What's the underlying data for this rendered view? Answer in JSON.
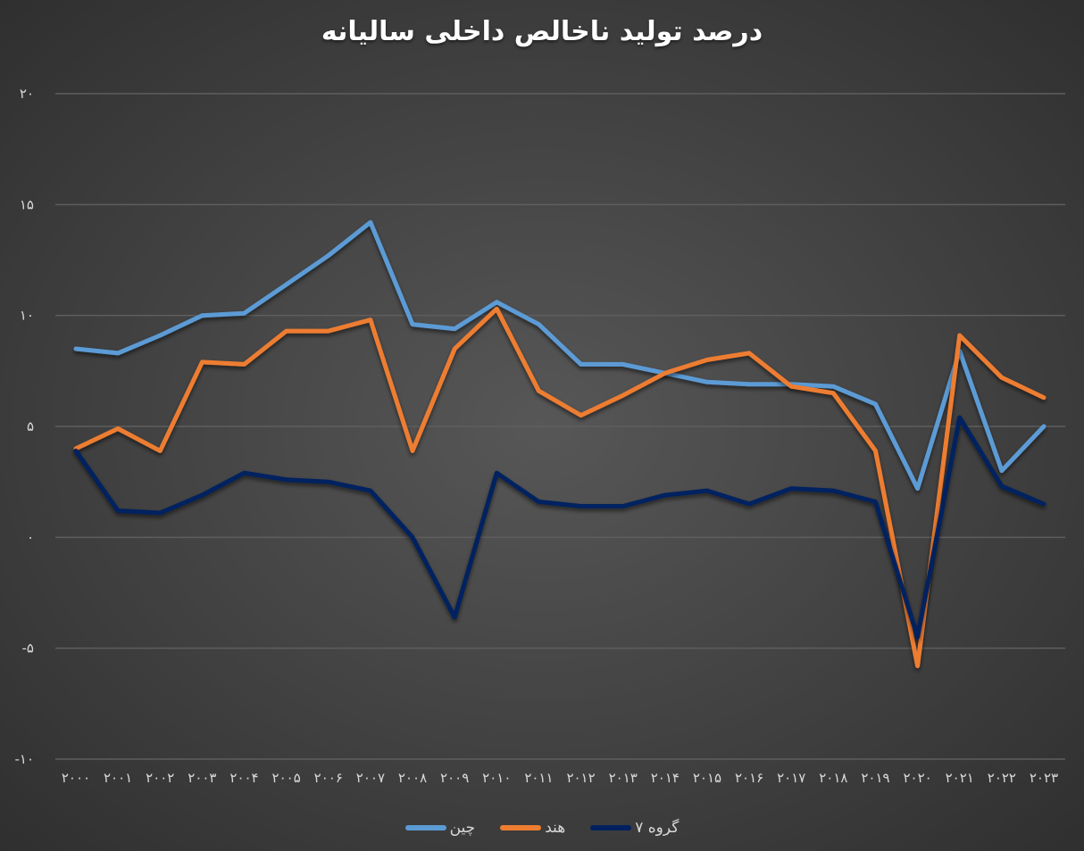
{
  "title": "درصد تولید ناخالص داخلی سالیانه",
  "legend": [
    {
      "label": "چین",
      "color": "#5b9bd5"
    },
    {
      "label": "هند",
      "color": "#ed7d31"
    },
    {
      "label": "گروه ۷",
      "color": "#002060"
    }
  ],
  "y_ticks": [
    {
      "value": 20,
      "label": "۲۰"
    },
    {
      "value": 15,
      "label": "۱۵"
    },
    {
      "value": 10,
      "label": "۱۰"
    },
    {
      "value": 5,
      "label": "۵"
    },
    {
      "value": 0,
      "label": "۰"
    },
    {
      "value": -5,
      "label": "-۵"
    },
    {
      "value": -10,
      "label": "-۱۰"
    }
  ],
  "x_tick_labels": [
    "۲۰۰۰",
    "۲۰۰۱",
    "۲۰۰۲",
    "۲۰۰۳",
    "۲۰۰۴",
    "۲۰۰۵",
    "۲۰۰۶",
    "۲۰۰۷",
    "۲۰۰۸",
    "۲۰۰۹",
    "۲۰۱۰",
    "۲۰۱۱",
    "۲۰۱۲",
    "۲۰۱۳",
    "۲۰۱۴",
    "۲۰۱۵",
    "۲۰۱۶",
    "۲۰۱۷",
    "۲۰۱۸",
    "۲۰۱۹",
    "۲۰۲۰",
    "۲۰۲۱",
    "۲۰۲۲",
    "۲۰۲۳"
  ],
  "chart_data": {
    "type": "line",
    "title": "درصد تولید ناخالص داخلی سالیانه",
    "xlabel": "",
    "ylabel": "",
    "ylim": [
      -10,
      20
    ],
    "grid": true,
    "legend_position": "bottom",
    "categories": [
      2000,
      2001,
      2002,
      2003,
      2004,
      2005,
      2006,
      2007,
      2008,
      2009,
      2010,
      2011,
      2012,
      2013,
      2014,
      2015,
      2016,
      2017,
      2018,
      2019,
      2020,
      2021,
      2022,
      2023
    ],
    "series": [
      {
        "name": "چین",
        "color": "#5b9bd5",
        "values": [
          8.5,
          8.3,
          9.1,
          10.0,
          10.1,
          11.4,
          12.7,
          14.2,
          9.6,
          9.4,
          10.6,
          9.6,
          7.8,
          7.8,
          7.4,
          7.0,
          6.9,
          6.9,
          6.8,
          6.0,
          2.2,
          8.4,
          3.0,
          5.0
        ]
      },
      {
        "name": "هند",
        "color": "#ed7d31",
        "values": [
          4.0,
          4.9,
          3.9,
          7.9,
          7.8,
          9.3,
          9.3,
          9.8,
          3.9,
          8.5,
          10.3,
          6.6,
          5.5,
          6.4,
          7.4,
          8.0,
          8.3,
          6.8,
          6.5,
          3.9,
          -5.8,
          9.1,
          7.2,
          6.3
        ]
      },
      {
        "name": "گروه ۷",
        "color": "#002060",
        "values": [
          3.9,
          1.2,
          1.1,
          1.9,
          2.9,
          2.6,
          2.5,
          2.1,
          0.0,
          -3.6,
          2.9,
          1.6,
          1.4,
          1.4,
          1.9,
          2.1,
          1.5,
          2.2,
          2.1,
          1.6,
          -4.5,
          5.4,
          2.3,
          1.5
        ]
      }
    ]
  }
}
